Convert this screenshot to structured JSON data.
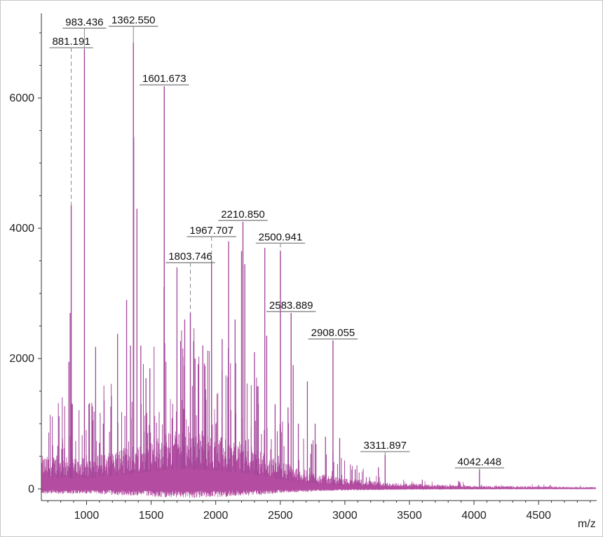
{
  "chart_data": {
    "type": "line",
    "title": "",
    "xlabel": "m/z",
    "ylabel": "",
    "xlim": [
      650,
      4950
    ],
    "ylim": [
      -180,
      7300
    ],
    "x_ticks": [
      1000,
      1500,
      2000,
      2500,
      3000,
      3500,
      4000,
      4500
    ],
    "y_ticks": [
      0,
      2000,
      4000,
      6000
    ],
    "x_tick_labels": [
      "1000",
      "1500",
      "2000",
      "2500",
      "3000",
      "3500",
      "4000",
      "4500"
    ],
    "y_tick_labels": [
      "0",
      "2000",
      "4000",
      "6000"
    ],
    "grid": false,
    "line_color": "#a2469a",
    "fill_color": "#b0429c",
    "annotated_peaks": [
      {
        "x": 881.191,
        "label": "881.191",
        "height": 4350,
        "label_y": 6750,
        "dashed": true
      },
      {
        "x": 983.436,
        "label": "983.436",
        "height": 6750,
        "label_y": 7050,
        "dashed": false
      },
      {
        "x": 1362.55,
        "label": "1362.550",
        "height": 6850,
        "label_y": 7080,
        "dashed": false
      },
      {
        "x": 1601.673,
        "label": "1601.673",
        "height": 6180,
        "label_y": 6180,
        "dashed": false
      },
      {
        "x": 1803.746,
        "label": "1803.746",
        "height": 2700,
        "label_y": 3450,
        "dashed": true
      },
      {
        "x": 1967.707,
        "label": "1967.707",
        "height": 3500,
        "label_y": 3850,
        "dashed": true
      },
      {
        "x": 2210.85,
        "label": "2210.850",
        "height": 4100,
        "label_y": 4100,
        "dashed": false
      },
      {
        "x": 2500.941,
        "label": "2500.941",
        "height": 3650,
        "label_y": 3750,
        "dashed": true
      },
      {
        "x": 2583.889,
        "label": "2583.889",
        "height": 2700,
        "label_y": 2700,
        "dashed": true
      },
      {
        "x": 2908.055,
        "label": "2908.055",
        "height": 2280,
        "label_y": 2280,
        "dashed": false
      },
      {
        "x": 3311.897,
        "label": "3311.897",
        "height": 520,
        "label_y": 550,
        "dashed": true
      },
      {
        "x": 4042.448,
        "label": "4042.448",
        "height": 290,
        "label_y": 300,
        "dashed": false
      }
    ],
    "other_peaks": [
      {
        "x": 863,
        "height": 1950
      },
      {
        "x": 873,
        "height": 2700
      },
      {
        "x": 890,
        "height": 1300
      },
      {
        "x": 1070,
        "height": 2180
      },
      {
        "x": 1130,
        "height": 1000
      },
      {
        "x": 1240,
        "height": 2380
      },
      {
        "x": 1310,
        "height": 2900
      },
      {
        "x": 1340,
        "height": 2200
      },
      {
        "x": 1365,
        "height": 5400
      },
      {
        "x": 1390,
        "height": 4300
      },
      {
        "x": 1420,
        "height": 2200
      },
      {
        "x": 1460,
        "height": 1700
      },
      {
        "x": 1490,
        "height": 1850
      },
      {
        "x": 1600,
        "height": 3100
      },
      {
        "x": 1700,
        "height": 3400
      },
      {
        "x": 1760,
        "height": 2600
      },
      {
        "x": 1840,
        "height": 2000
      },
      {
        "x": 1900,
        "height": 2200
      },
      {
        "x": 2050,
        "height": 2300
      },
      {
        "x": 2100,
        "height": 3800
      },
      {
        "x": 2150,
        "height": 2600
      },
      {
        "x": 2200,
        "height": 3650
      },
      {
        "x": 2225,
        "height": 3450
      },
      {
        "x": 2300,
        "height": 2100
      },
      {
        "x": 2380,
        "height": 3700
      },
      {
        "x": 2395,
        "height": 2350
      },
      {
        "x": 2460,
        "height": 1300
      },
      {
        "x": 2560,
        "height": 1250
      },
      {
        "x": 2600,
        "height": 1900
      },
      {
        "x": 2640,
        "height": 1000
      },
      {
        "x": 2710,
        "height": 1650
      },
      {
        "x": 2770,
        "height": 1000
      },
      {
        "x": 2850,
        "height": 800
      },
      {
        "x": 2960,
        "height": 780
      },
      {
        "x": 3080,
        "height": 300
      },
      {
        "x": 3260,
        "height": 330
      },
      {
        "x": 3600,
        "height": 140
      },
      {
        "x": 3880,
        "height": 120
      },
      {
        "x": 4500,
        "height": 60
      }
    ],
    "baseline": [
      {
        "x": 650,
        "level": 350
      },
      {
        "x": 1000,
        "level": 330
      },
      {
        "x": 1300,
        "level": 440
      },
      {
        "x": 1600,
        "level": 580
      },
      {
        "x": 1800,
        "level": 620
      },
      {
        "x": 2000,
        "level": 560
      },
      {
        "x": 2200,
        "level": 500
      },
      {
        "x": 2400,
        "level": 370
      },
      {
        "x": 2600,
        "level": 240
      },
      {
        "x": 2800,
        "level": 160
      },
      {
        "x": 3000,
        "level": 110
      },
      {
        "x": 3400,
        "level": 60
      },
      {
        "x": 4000,
        "level": 35
      },
      {
        "x": 4950,
        "level": 20
      }
    ]
  }
}
